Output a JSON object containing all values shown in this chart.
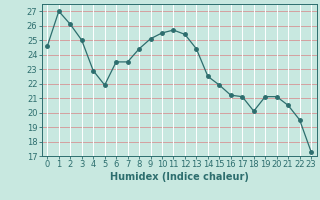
{
  "x": [
    0,
    1,
    2,
    3,
    4,
    5,
    6,
    7,
    8,
    9,
    10,
    11,
    12,
    13,
    14,
    15,
    16,
    17,
    18,
    19,
    20,
    21,
    22,
    23
  ],
  "y": [
    24.6,
    27.0,
    26.1,
    25.0,
    22.9,
    21.9,
    23.5,
    23.5,
    24.4,
    25.1,
    25.5,
    25.7,
    25.4,
    24.4,
    22.5,
    21.9,
    21.2,
    21.1,
    20.1,
    21.1,
    21.1,
    20.5,
    19.5,
    17.3
  ],
  "line_color": "#2d6e6e",
  "marker": "o",
  "marker_size": 2.5,
  "bg_color": "#c8e8e0",
  "grid_color_h": "#d4a0a0",
  "grid_color_v": "#ffffff",
  "xlabel": "Humidex (Indice chaleur)",
  "ylim": [
    17,
    27.5
  ],
  "xlim": [
    -0.5,
    23.5
  ],
  "yticks": [
    17,
    18,
    19,
    20,
    21,
    22,
    23,
    24,
    25,
    26,
    27
  ],
  "xticks": [
    0,
    1,
    2,
    3,
    4,
    5,
    6,
    7,
    8,
    9,
    10,
    11,
    12,
    13,
    14,
    15,
    16,
    17,
    18,
    19,
    20,
    21,
    22,
    23
  ],
  "xlabel_fontsize": 7,
  "tick_fontsize": 6
}
